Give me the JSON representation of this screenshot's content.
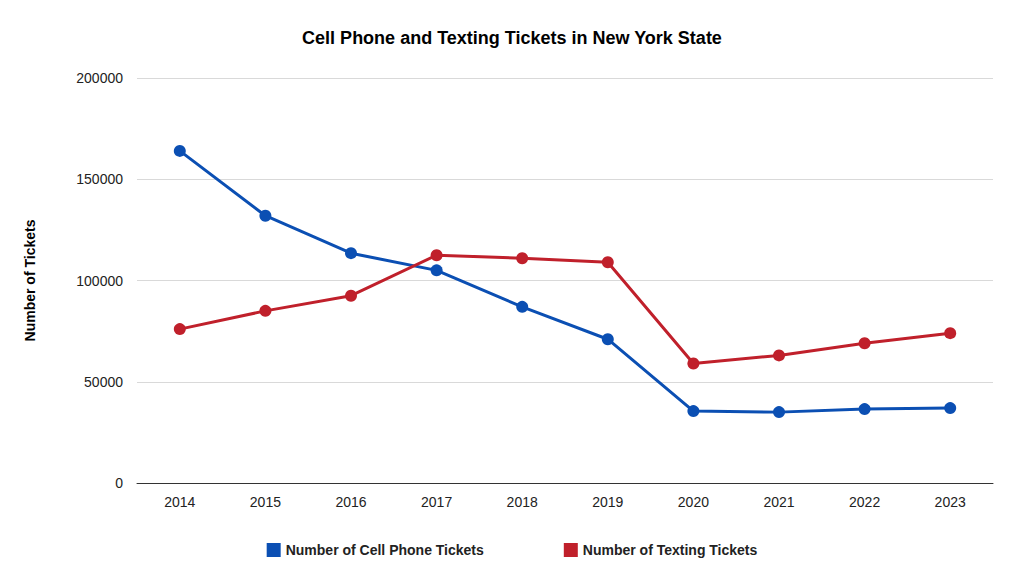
{
  "chart_data": {
    "type": "line",
    "title": "Cell Phone and Texting Tickets in New York State",
    "y_label": "Number of Tickets",
    "categories": [
      "2014",
      "2015",
      "2016",
      "2017",
      "2018",
      "2019",
      "2020",
      "2021",
      "2022",
      "2023"
    ],
    "series": [
      {
        "name": "Number of Cell Phone Tickets",
        "color": "#0b4fb3",
        "values": [
          164000,
          132000,
          113500,
          105000,
          87000,
          71000,
          35500,
          35000,
          36500,
          37000
        ]
      },
      {
        "name": "Number of Texting Tickets",
        "color": "#c0202b",
        "values": [
          76000,
          85000,
          92500,
          112500,
          111000,
          109000,
          59000,
          63000,
          69000,
          74000
        ]
      }
    ],
    "ylim": [
      0,
      200000
    ],
    "yticks": [
      0,
      50000,
      100000,
      150000,
      200000
    ],
    "grid": true,
    "legend": "bottom",
    "marker": "circle"
  }
}
